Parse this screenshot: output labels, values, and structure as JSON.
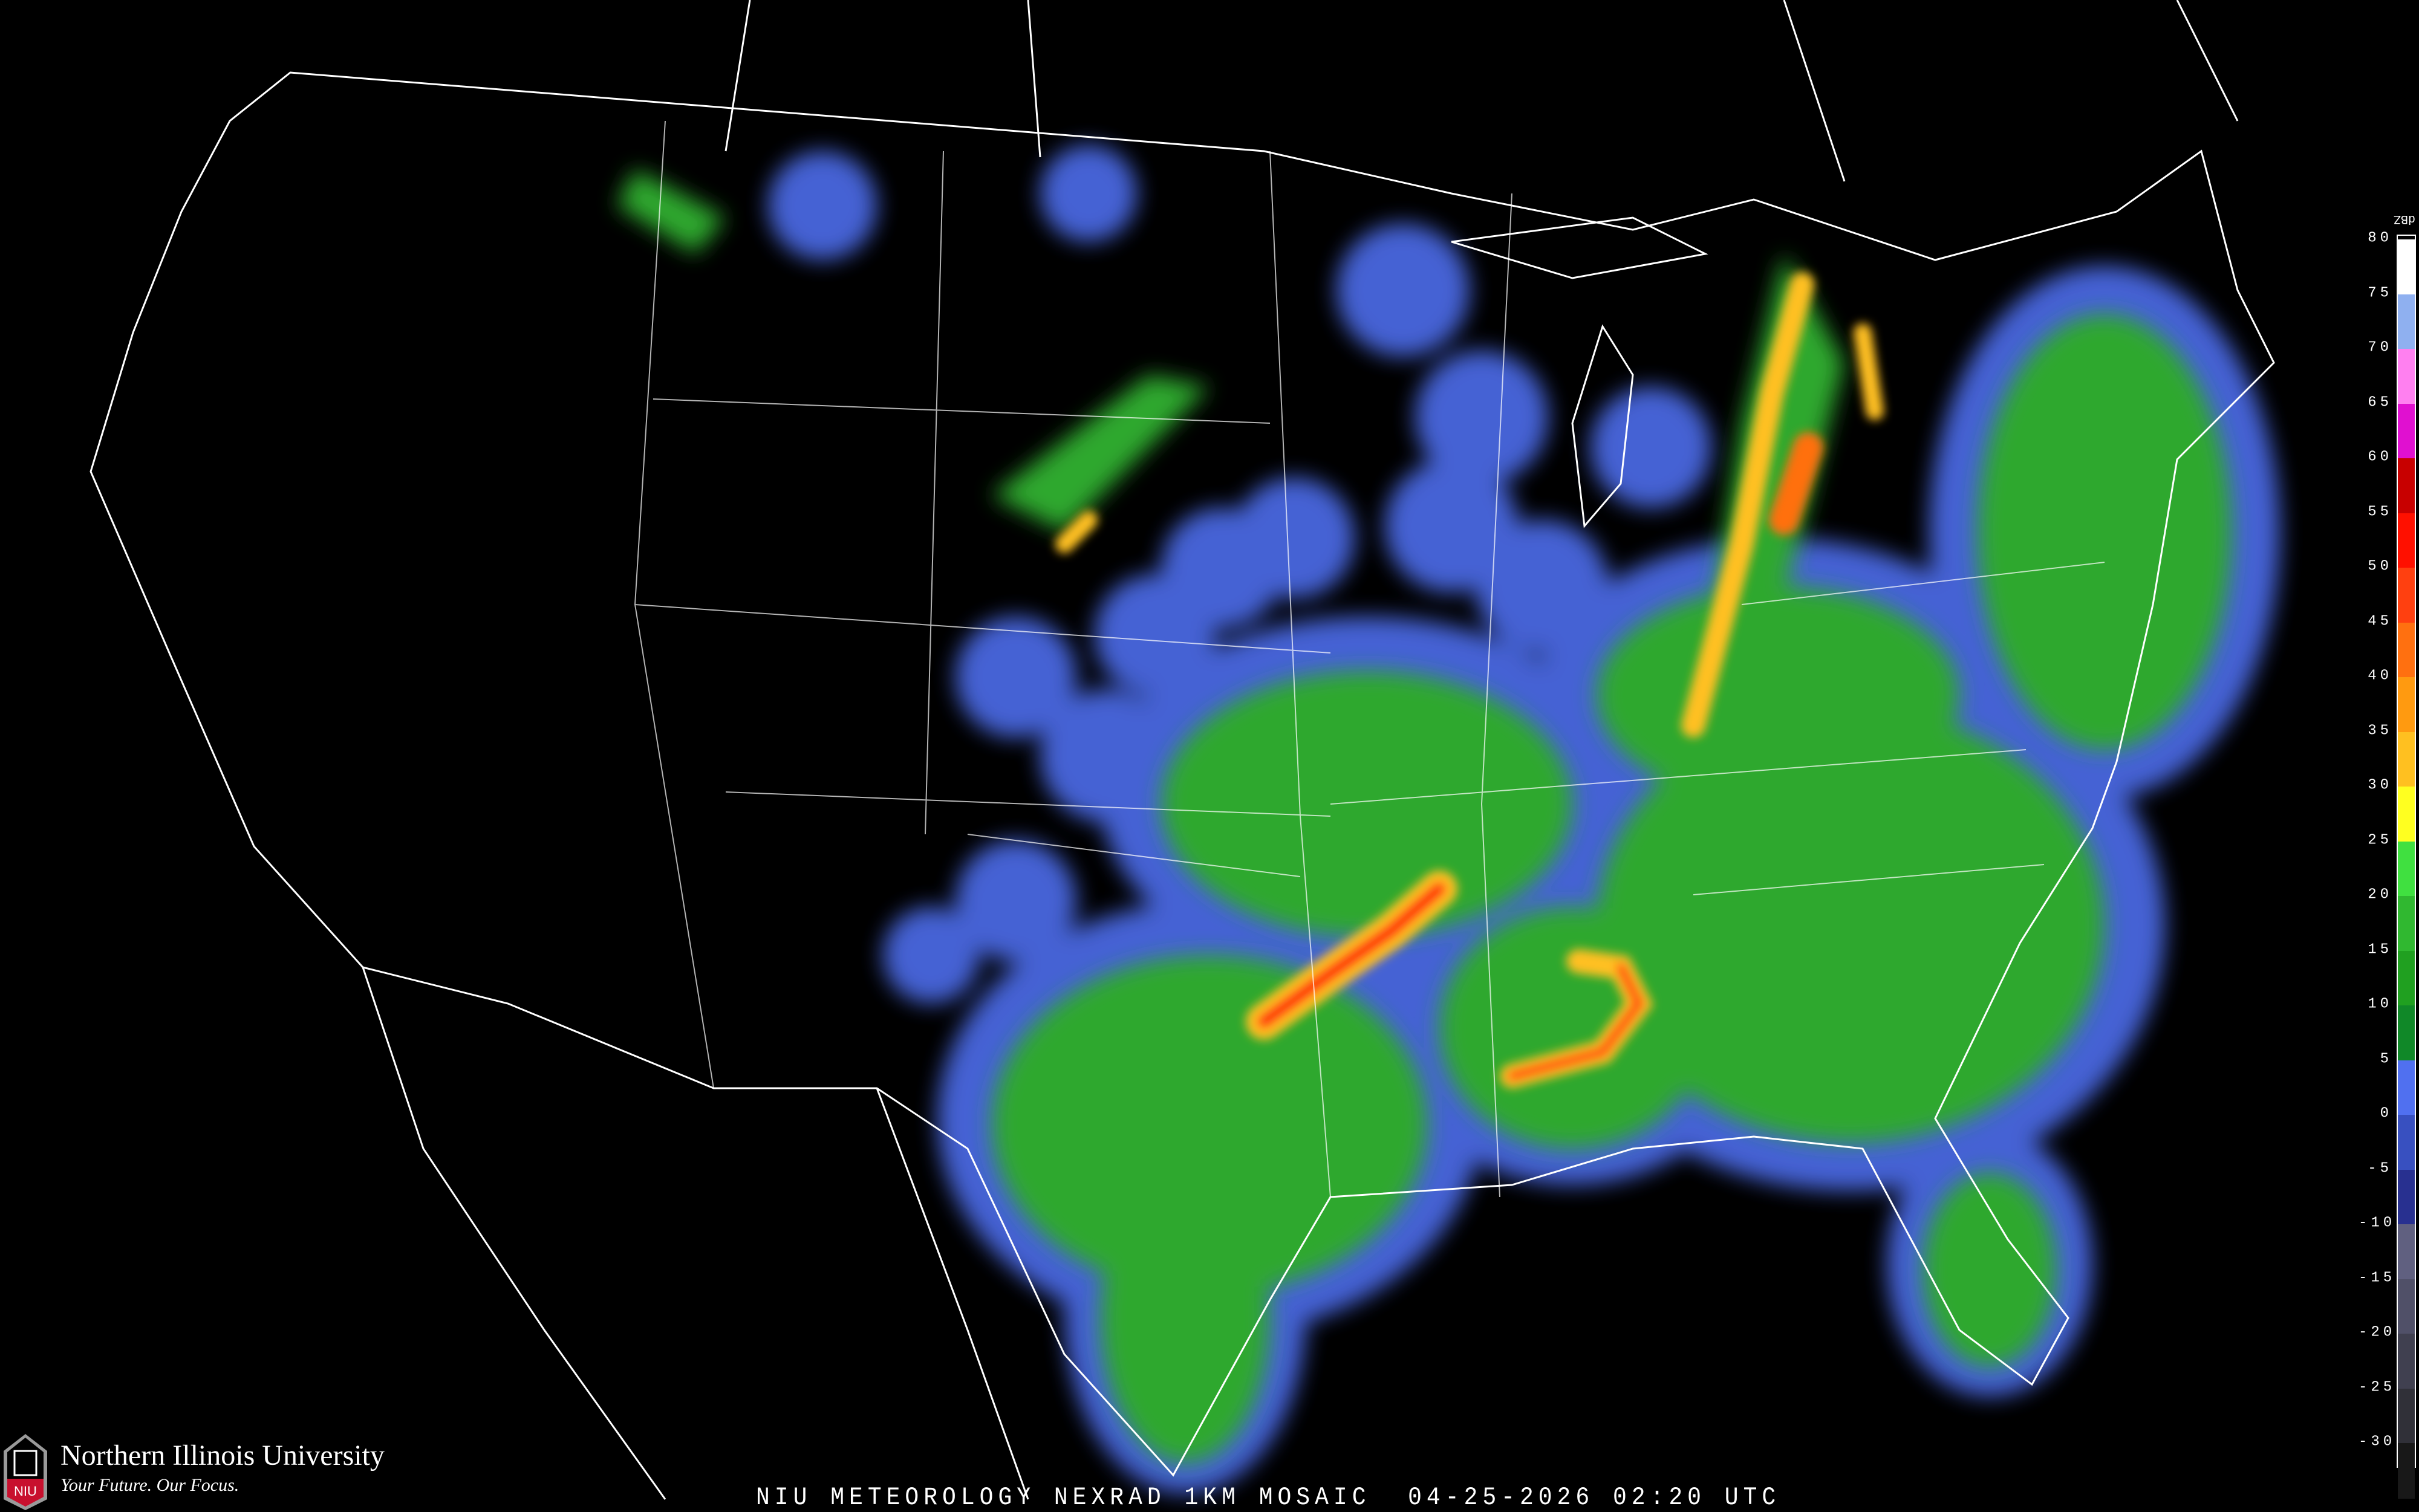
{
  "caption": "NIU METEOROLOGY NEXRAD 1KM MOSAIC  04-25-2026 02:20 UTC",
  "logo": {
    "university": "Northern Illinois University",
    "tagline": "Your Future. Our Focus.",
    "shield_text": "NIU",
    "colors": {
      "shield_red": "#c8102e",
      "shield_gray": "#9a9a9a"
    }
  },
  "legend": {
    "unit": "dBZ",
    "labels": [
      "80",
      "75",
      "70",
      "65",
      "60",
      "55",
      "50",
      "45",
      "40",
      "35",
      "30",
      "25",
      "20",
      "15",
      "10",
      "5",
      "0",
      "-5",
      "-10",
      "-15",
      "-20",
      "-25",
      "-30"
    ],
    "colors": [
      "#ffffff",
      "#8fb0f0",
      "#ff80f0",
      "#e010d0",
      "#c80000",
      "#ff1000",
      "#ff4010",
      "#ff7010",
      "#ff9a10",
      "#ffc020",
      "#ffff20",
      "#40e040",
      "#30b830",
      "#20a020",
      "#108828",
      "#5070f0",
      "#3850c0",
      "#283090",
      "#606080",
      "#505068",
      "#404050",
      "#303038",
      "#181818"
    ]
  },
  "map": {
    "background": "#000000",
    "boundary_color": "#ffffff",
    "echo_colors": {
      "light": "#4a68e0",
      "moderate": "#2fa82f",
      "heavy": "#ffc020",
      "intense": "#ff2010"
    }
  }
}
